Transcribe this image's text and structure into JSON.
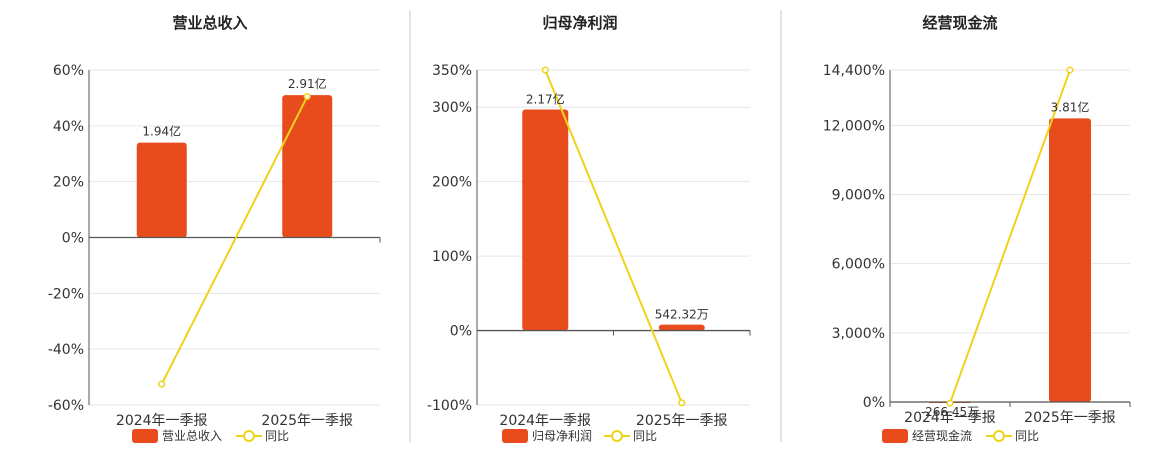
{
  "colors": {
    "bar": "#e84c1c",
    "line": "#f0d21a",
    "grid": "#e6e6e6",
    "axis": "#555555",
    "divider": "#c8c8c8"
  },
  "chart_data": [
    {
      "type": "bar",
      "title": "营业总收入",
      "categories": [
        "2024年一季报",
        "2025年一季报"
      ],
      "bar_values": [
        34,
        51
      ],
      "bar_labels": [
        "1.94亿",
        "2.91亿"
      ],
      "line_values": [
        -52.5,
        50.5
      ],
      "ylim": [
        -60,
        60
      ],
      "yticks": [
        -60,
        -40,
        -20,
        0,
        20,
        40,
        60
      ],
      "ytick_labels": [
        "-60%",
        "-40%",
        "-20%",
        "0%",
        "20%",
        "40%",
        "60%"
      ],
      "legend": {
        "bar_label": "营业总收入",
        "line_label": "同比",
        "placement": "bottom"
      }
    },
    {
      "type": "bar",
      "title": "归母净利润",
      "categories": [
        "2024年一季报",
        "2025年一季报"
      ],
      "bar_values": [
        297,
        8
      ],
      "bar_labels": [
        "2.17亿",
        "542.32万"
      ],
      "line_values": [
        350,
        -97
      ],
      "ylim": [
        -100,
        350
      ],
      "yticks": [
        -100,
        0,
        100,
        200,
        300,
        350
      ],
      "ytick_labels": [
        "-100%",
        "0%",
        "100%",
        "200%",
        "300%",
        "350%"
      ],
      "legend": {
        "bar_label": "归母净利润",
        "line_label": "同比",
        "placement": "bottom"
      }
    },
    {
      "type": "bar",
      "title": "经营现金流",
      "categories": [
        "2024年一季报",
        "2025年一季报"
      ],
      "bar_values": [
        -20,
        12300
      ],
      "bar_labels": [
        "-266.45万",
        "3.81亿"
      ],
      "line_values": [
        -50,
        14400
      ],
      "ylim": [
        0,
        14400
      ],
      "yticks": [
        0,
        3000,
        6000,
        9000,
        12000,
        14400
      ],
      "ytick_labels": [
        "0%",
        "3,000%",
        "6,000%",
        "9,000%",
        "12,000%",
        "14,400%"
      ],
      "legend": {
        "bar_label": "经营现金流",
        "line_label": "同比",
        "placement": "bottom"
      }
    }
  ]
}
